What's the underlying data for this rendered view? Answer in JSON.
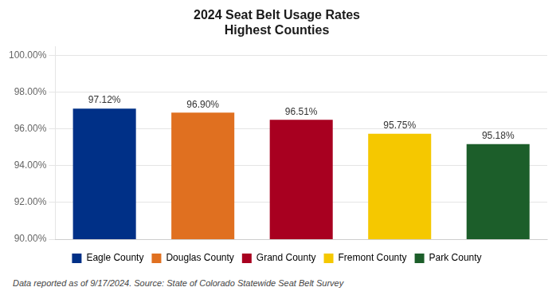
{
  "chart_data": {
    "type": "bar",
    "title": "2024 Seat Belt Usage Rates",
    "subtitle": "Highest Counties",
    "annotation": "Data reported as of 9/17/2024. Source: State of Colorado Statewide Seat Belt Survey",
    "categories": [
      "Eagle County",
      "Douglas County",
      "Grand County",
      "Fremont County",
      "Park County"
    ],
    "values": [
      97.12,
      96.9,
      96.51,
      95.75,
      95.18
    ],
    "value_labels": [
      "97.12%",
      "96.90%",
      "96.51%",
      "95.75%",
      "95.18%"
    ],
    "colors": [
      "#003087",
      "#E07020",
      "#A80020",
      "#F5C800",
      "#1C5E2A"
    ],
    "ylim": [
      90.0,
      100.5
    ],
    "yticks": [
      {
        "value": 90.0,
        "label": "90.00%"
      },
      {
        "value": 92.0,
        "label": "92.00%"
      },
      {
        "value": 94.0,
        "label": "94.00%"
      },
      {
        "value": 96.0,
        "label": "96.00%"
      },
      {
        "value": 98.0,
        "label": "98.00%"
      },
      {
        "value": 100.0,
        "label": "100.00%"
      }
    ],
    "grid": true,
    "legend": "bottom",
    "data_labels": true,
    "tick_labels": "y"
  }
}
